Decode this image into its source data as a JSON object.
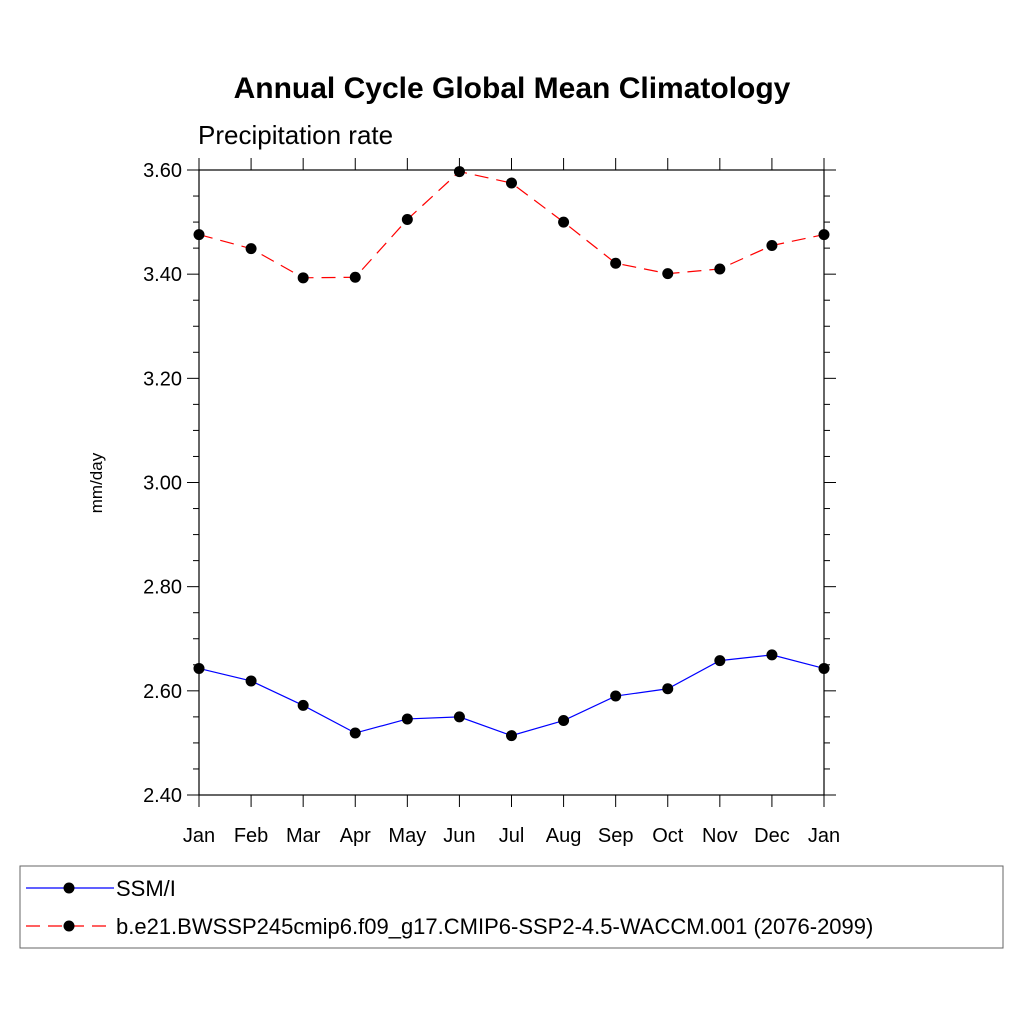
{
  "chart_data": {
    "type": "line",
    "title": "Annual Cycle Global Mean Climatology",
    "subtitle": "Precipitation rate",
    "xlabel": "",
    "ylabel": "mm/day",
    "categories": [
      "Jan",
      "Feb",
      "Mar",
      "Apr",
      "May",
      "Jun",
      "Jul",
      "Aug",
      "Sep",
      "Oct",
      "Nov",
      "Dec",
      "Jan"
    ],
    "ylim": [
      2.4,
      3.6
    ],
    "yticks": [
      "2.40",
      "2.60",
      "2.80",
      "3.00",
      "3.20",
      "3.40",
      "3.60"
    ],
    "grid": false,
    "legend_placement": "bottom",
    "series": [
      {
        "name": "SSM/I",
        "color": "#0000ff",
        "dash": "solid",
        "marker": "circle",
        "values": [
          2.643,
          2.619,
          2.572,
          2.519,
          2.546,
          2.55,
          2.514,
          2.543,
          2.59,
          2.604,
          2.658,
          2.669,
          2.643
        ]
      },
      {
        "name": "b.e21.BWSSP245cmip6.f09_g17.CMIP6-SSP2-4.5-WACCM.001 (2076-2099)",
        "color": "#ff0000",
        "dash": "dashed",
        "marker": "circle",
        "values": [
          3.476,
          3.449,
          3.393,
          3.394,
          3.505,
          3.597,
          3.575,
          3.5,
          3.421,
          3.401,
          3.41,
          3.455,
          3.476
        ]
      }
    ]
  }
}
